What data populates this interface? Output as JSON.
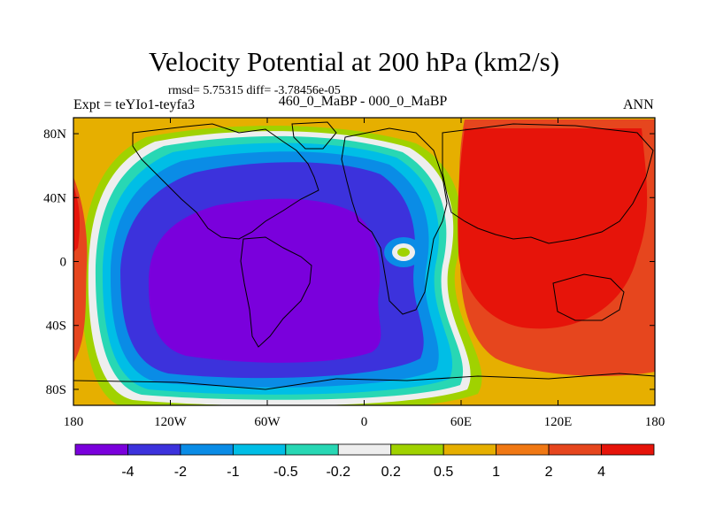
{
  "header": {
    "title": "Velocity Potential at 200 hPa (km2/s)",
    "stats": "rmsd= 5.75315 diff= -3.78456e-05",
    "experiment": "Expt = teYIo1-teyfa3",
    "subtitle": "460_0_MaBP - 000_0_MaBP",
    "season": "ANN"
  },
  "chart_data": {
    "type": "heatmap",
    "title": "Velocity Potential at 200 hPa (km2/s)",
    "xlabel": "",
    "ylabel": "",
    "xlim": [
      -180,
      180
    ],
    "ylim": [
      -90,
      90
    ],
    "x_ticks": [
      {
        "value": -180,
        "label": "180"
      },
      {
        "value": -120,
        "label": "120W"
      },
      {
        "value": -60,
        "label": "60W"
      },
      {
        "value": 0,
        "label": "0"
      },
      {
        "value": 60,
        "label": "60E"
      },
      {
        "value": 120,
        "label": "120E"
      },
      {
        "value": 180,
        "label": "180"
      }
    ],
    "y_ticks": [
      {
        "value": 80,
        "label": "80N"
      },
      {
        "value": 40,
        "label": "40N"
      },
      {
        "value": 0,
        "label": "0"
      },
      {
        "value": -40,
        "label": "40S"
      },
      {
        "value": -80,
        "label": "80S"
      }
    ],
    "contour_levels": [
      "-4",
      "-2",
      "-1",
      "-0.5",
      "-0.2",
      "0.2",
      "0.5",
      "1",
      "2",
      "4"
    ],
    "level_colors": [
      "#7a00dc",
      "#3c32dc",
      "#0a8ce6",
      "#00bee6",
      "#28d7b4",
      "#eeeeee",
      "#a0d200",
      "#e6af00",
      "#f07814",
      "#e6461e",
      "#e6140a"
    ],
    "field_features": [
      {
        "name": "westhemi-minimum",
        "lon": -60,
        "lat": -20,
        "value": -4.5
      },
      {
        "name": "easthemi-maximum",
        "lon": 115,
        "lat": 10,
        "value": 4.5
      },
      {
        "name": "africa-closed-contour",
        "lon": 25,
        "lat": 5,
        "value": 0.3
      }
    ]
  }
}
